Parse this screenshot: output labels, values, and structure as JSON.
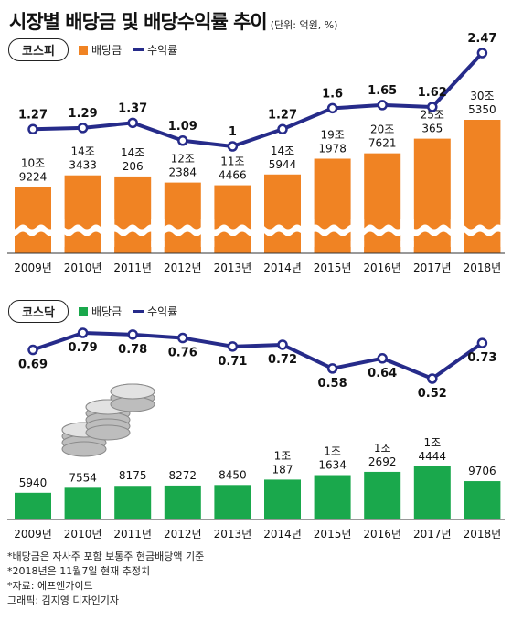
{
  "title": "시장별 배당금 및 배당수익률 추이",
  "unit_note": "(단위: 억원, %)",
  "colors": {
    "kospi_bar": "#f08323",
    "kosdaq_bar": "#1aa84c",
    "line": "#262b8a",
    "axis": "#333333"
  },
  "chart_data": [
    {
      "type": "bar",
      "market": "코스피",
      "categories": [
        "2009년",
        "2010년",
        "2011년",
        "2012년",
        "2013년",
        "2014년",
        "2015년",
        "2016년",
        "2017년",
        "2018년"
      ],
      "legend": {
        "bar": "배당금",
        "line": "수익률"
      },
      "bar_labels": [
        [
          "10조",
          "9224"
        ],
        [
          "14조",
          "3433"
        ],
        [
          "14조",
          "206"
        ],
        [
          "12조",
          "2384"
        ],
        [
          "11조",
          "4466"
        ],
        [
          "14조",
          "5944"
        ],
        [
          "19조",
          "1978"
        ],
        [
          "20조",
          "7621"
        ],
        [
          "25조",
          "365"
        ],
        [
          "30조",
          "5350"
        ]
      ],
      "series": [
        {
          "name": "배당금",
          "values": [
            109224,
            143433,
            140206,
            122384,
            114466,
            145944,
            191978,
            207621,
            250365,
            305350
          ]
        },
        {
          "name": "수익률",
          "values": [
            1.27,
            1.29,
            1.37,
            1.09,
            1,
            1.27,
            1.6,
            1.65,
            1.62,
            2.47
          ]
        }
      ],
      "line_labels": [
        "1.27",
        "1.29",
        "1.37",
        "1.09",
        "1",
        "1.27",
        "1.6",
        "1.65",
        "1.62",
        "2.47"
      ],
      "axis_break": true
    },
    {
      "type": "bar",
      "market": "코스닥",
      "categories": [
        "2009년",
        "2010년",
        "2011년",
        "2012년",
        "2013년",
        "2014년",
        "2015년",
        "2016년",
        "2017년",
        "2018년"
      ],
      "legend": {
        "bar": "배당금",
        "line": "수익률"
      },
      "bar_labels": [
        [
          "",
          "5940"
        ],
        [
          "",
          "7554"
        ],
        [
          "",
          "8175"
        ],
        [
          "",
          "8272"
        ],
        [
          "",
          "8450"
        ],
        [
          "1조",
          "187"
        ],
        [
          "1조",
          "1634"
        ],
        [
          "1조",
          "2692"
        ],
        [
          "1조",
          "4444"
        ],
        [
          "",
          "9706"
        ]
      ],
      "series": [
        {
          "name": "배당금",
          "values": [
            5940,
            7554,
            8175,
            8272,
            8450,
            10187,
            11634,
            12692,
            14444,
            9706
          ]
        },
        {
          "name": "수익률",
          "values": [
            0.69,
            0.79,
            0.78,
            0.76,
            0.71,
            0.72,
            0.58,
            0.64,
            0.52,
            0.73
          ]
        }
      ],
      "line_labels": [
        "0.69",
        "0.79",
        "0.78",
        "0.76",
        "0.71",
        "0.72",
        "0.58",
        "0.64",
        "0.52",
        "0.73"
      ],
      "axis_break": false
    }
  ],
  "footnotes": [
    "*배당금은 자사주 포함 보통주 현금배당액 기준",
    "*2018년은 11월7일 현재 추정치",
    "*자료: 에프앤가이드",
    "그래픽: 김지영 디자인기자"
  ]
}
